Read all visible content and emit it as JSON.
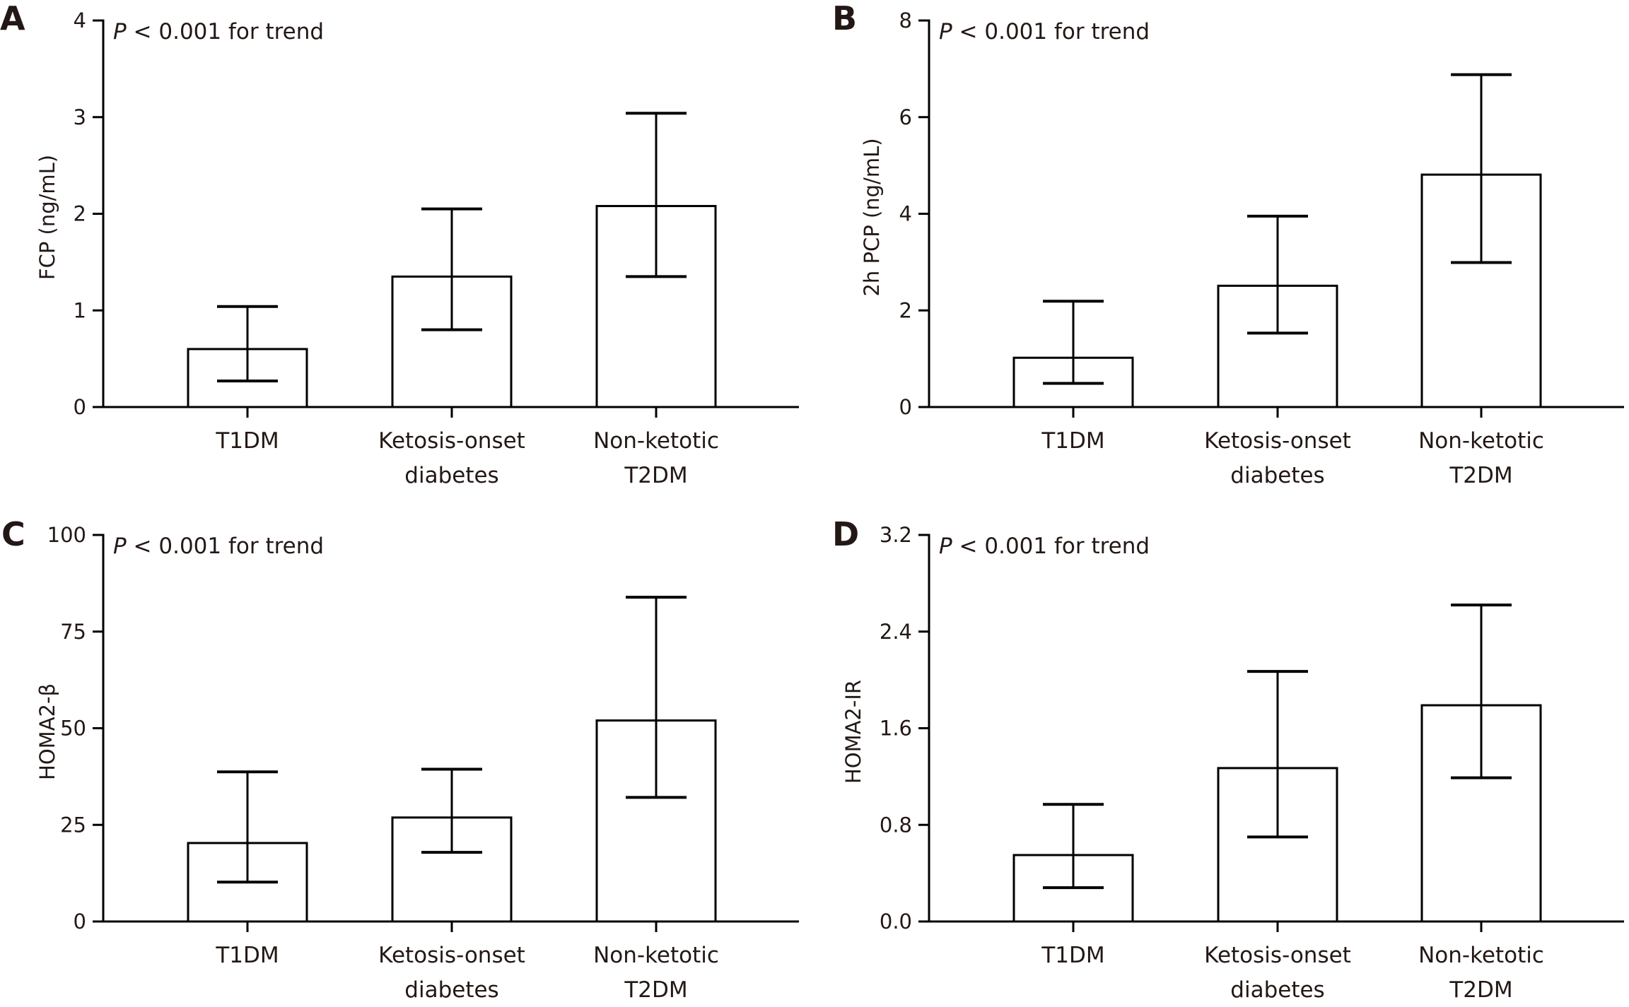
{
  "figure": {
    "text_color": "#231815",
    "bar_fill": "#ffffff",
    "line_color": "#000000"
  },
  "chart_data": [
    {
      "panel": "A",
      "type": "bar",
      "annotation_italic": "P",
      "annotation_rest": " < 0.001 for trend",
      "ylabel": "FCP (ng/mL)",
      "xlabel": "",
      "ylim": [
        0,
        4
      ],
      "yticks": [
        0,
        1,
        2,
        3,
        4
      ],
      "ytick_labels": [
        "0",
        "1",
        "2",
        "3",
        "4"
      ],
      "categories": [
        [
          "T1DM"
        ],
        [
          "Ketosis-onset",
          "diabetes"
        ],
        [
          "Non-ketotic",
          "T2DM"
        ]
      ],
      "values": [
        0.6,
        1.35,
        2.08
      ],
      "error_upper": [
        1.04,
        2.05,
        3.04
      ],
      "error_lower": [
        0.27,
        0.8,
        1.35
      ],
      "grid": false
    },
    {
      "panel": "B",
      "type": "bar",
      "annotation_italic": "P",
      "annotation_rest": " < 0.001 for trend",
      "ylabel": "2h PCP (ng/mL)",
      "xlabel": "",
      "ylim": [
        0,
        8
      ],
      "yticks": [
        0,
        2,
        4,
        6,
        8
      ],
      "ytick_labels": [
        "0",
        "2",
        "4",
        "6",
        "8"
      ],
      "categories": [
        [
          "T1DM"
        ],
        [
          "Ketosis-onset",
          "diabetes"
        ],
        [
          "Non-ketotic",
          "T2DM"
        ]
      ],
      "values": [
        1.02,
        2.51,
        4.81
      ],
      "error_upper": [
        2.19,
        3.95,
        6.88
      ],
      "error_lower": [
        0.49,
        1.53,
        2.99
      ],
      "grid": false
    },
    {
      "panel": "C",
      "type": "bar",
      "annotation_italic": "P",
      "annotation_rest": " < 0.001 for trend",
      "ylabel": "HOMA2-β",
      "xlabel": "",
      "ylim": [
        0,
        100
      ],
      "yticks": [
        0,
        25,
        50,
        75,
        100
      ],
      "ytick_labels": [
        "0",
        "25",
        "50",
        "75",
        "100"
      ],
      "categories": [
        [
          "T1DM"
        ],
        [
          "Ketosis-onset",
          "diabetes"
        ],
        [
          "Non-ketotic",
          "T2DM"
        ]
      ],
      "values": [
        20.3,
        26.9,
        52.0
      ],
      "error_upper": [
        38.7,
        39.4,
        83.9
      ],
      "error_lower": [
        10.2,
        17.9,
        32.1
      ],
      "grid": false
    },
    {
      "panel": "D",
      "type": "bar",
      "annotation_italic": "P",
      "annotation_rest": " < 0.001 for trend",
      "ylabel": "HOMA2-IR",
      "xlabel": "",
      "ylim": [
        0,
        3.2
      ],
      "yticks": [
        0,
        0.8,
        1.6,
        2.4,
        3.2
      ],
      "ytick_labels": [
        "0.0",
        "0.8",
        "1.6",
        "2.4",
        "3.2"
      ],
      "categories": [
        [
          "T1DM"
        ],
        [
          "Ketosis-onset",
          "diabetes"
        ],
        [
          "Non-ketotic",
          "T2DM"
        ]
      ],
      "values": [
        0.55,
        1.27,
        1.79
      ],
      "error_upper": [
        0.97,
        2.07,
        2.62
      ],
      "error_lower": [
        0.28,
        0.7,
        1.19
      ],
      "grid": false
    }
  ]
}
